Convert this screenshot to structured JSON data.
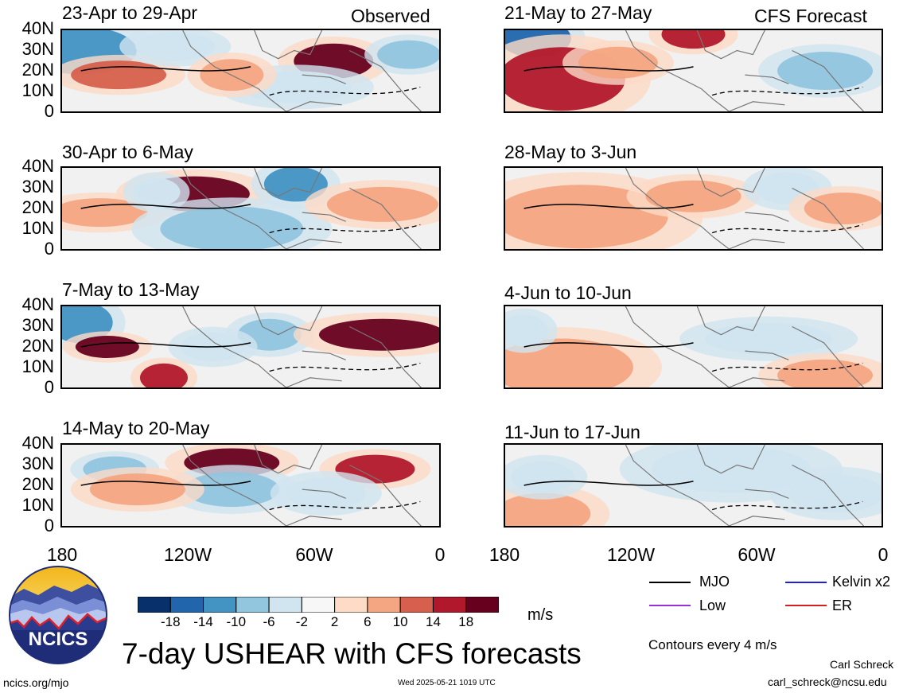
{
  "header": {
    "observed_label": "Observed",
    "forecast_label": "CFS Forecast"
  },
  "panels_observed": [
    {
      "title": "23-Apr to 29-Apr"
    },
    {
      "title": "30-Apr to 6-May"
    },
    {
      "title": "7-May to 13-May"
    },
    {
      "title": "14-May to 20-May"
    }
  ],
  "panels_forecast": [
    {
      "title": "21-May to 27-May"
    },
    {
      "title": "28-May to 3-Jun"
    },
    {
      "title": "4-Jun to 10-Jun"
    },
    {
      "title": "11-Jun to 17-Jun"
    }
  ],
  "lat_ticks": [
    "40N",
    "30N",
    "20N",
    "10N",
    "0"
  ],
  "lon_ticks": [
    "180",
    "120W",
    "60W",
    "0"
  ],
  "colorbar": {
    "ticks": [
      "-18",
      "-14",
      "-10",
      "-6",
      "-2",
      "2",
      "6",
      "10",
      "14",
      "18"
    ],
    "unit": "m/s",
    "colors": [
      "#08306b",
      "#2166ac",
      "#4393c3",
      "#92c5de",
      "#d1e5f0",
      "#f7f7f7",
      "#fddbc7",
      "#f4a582",
      "#d6604d",
      "#b2182b",
      "#67001f"
    ]
  },
  "legend": {
    "mjo": "MJO",
    "kelvin": "Kelvin x2",
    "low": "Low",
    "er": "ER",
    "contour_note": "Contours every 4 m/s",
    "colors": {
      "mjo": "#000000",
      "kelvin": "#1f1fd6",
      "low": "#9b30d9",
      "er": "#d42020"
    }
  },
  "title": "7-day USHEAR with CFS forecasts",
  "logo_text": "NCICS",
  "footer": {
    "url": "ncics.org/mjo",
    "timestamp": "Wed 2025-05-21 1019 UTC",
    "author": "Carl Schreck",
    "email": "carl_schreck@ncsu.edu"
  }
}
